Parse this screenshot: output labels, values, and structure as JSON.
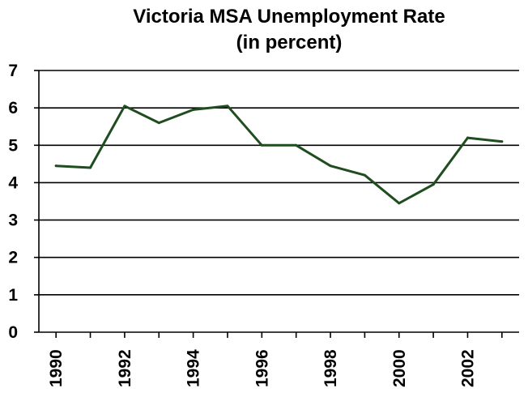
{
  "chart_data": {
    "type": "line",
    "title": "Victoria MSA Unemployment Rate",
    "subtitle": "(in percent)",
    "xlabel": "",
    "ylabel": "",
    "ylim": [
      0,
      7
    ],
    "yticks": [
      "0",
      "1",
      "2",
      "3",
      "4",
      "5",
      "6",
      "7"
    ],
    "xticks": [
      "1990",
      "1992",
      "1994",
      "1996",
      "1998",
      "2000",
      "2002"
    ],
    "grid": "horizontal",
    "legend": "none",
    "line_color": "#1f4d1f",
    "x": [
      1990,
      1991,
      1992,
      1993,
      1994,
      1995,
      1996,
      1997,
      1998,
      1999,
      2000,
      2001,
      2002,
      2003
    ],
    "series": [
      {
        "values": [
          4.45,
          4.4,
          6.05,
          5.6,
          5.95,
          6.05,
          5.0,
          5.0,
          4.45,
          4.2,
          3.45,
          3.95,
          5.2,
          5.1
        ]
      }
    ]
  }
}
